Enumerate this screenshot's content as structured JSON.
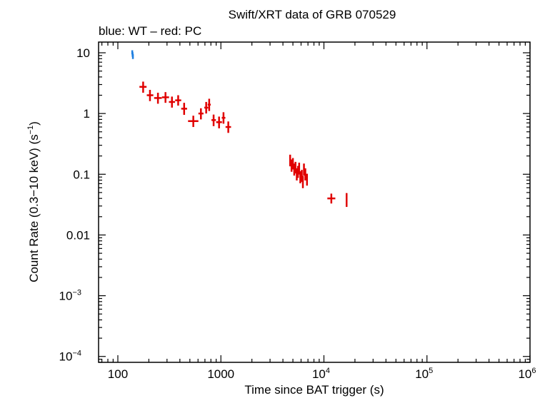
{
  "chart_data": {
    "type": "scatter",
    "title": "Swift/XRT data of GRB 070529",
    "subtitle": "blue: WT – red: PC",
    "xlabel": "Time since BAT trigger (s)",
    "ylabel_parts": {
      "main": "Count Rate (0.3−10 keV) (s",
      "sup": "−1",
      "close": ")"
    },
    "x_scale": "log",
    "y_scale": "log",
    "xlim": [
      65,
      1000000
    ],
    "ylim": [
      8e-05,
      15
    ],
    "grid": false,
    "x_ticks": [
      {
        "value": 100,
        "base": "100",
        "exp": ""
      },
      {
        "value": 1000,
        "base": "1000",
        "exp": ""
      },
      {
        "value": 10000,
        "base": "10",
        "exp": "4"
      },
      {
        "value": 100000,
        "base": "10",
        "exp": "5"
      },
      {
        "value": 1000000,
        "base": "10",
        "exp": "6"
      }
    ],
    "y_ticks": [
      {
        "value": 10,
        "base": "10",
        "exp": ""
      },
      {
        "value": 1,
        "base": "1",
        "exp": ""
      },
      {
        "value": 0.1,
        "base": "0.1",
        "exp": ""
      },
      {
        "value": 0.01,
        "base": "0.01",
        "exp": ""
      },
      {
        "value": 0.001,
        "base": "10",
        "exp": "−3"
      },
      {
        "value": 0.0001,
        "base": "10",
        "exp": "−4"
      }
    ],
    "series": [
      {
        "mode": "WT",
        "color": "#1e7fe0",
        "points": [
          {
            "x": 138,
            "xerr_lo": 2,
            "xerr_hi": 2,
            "y": 10.2,
            "yerr_lo": 0.8,
            "yerr_hi": 0.8
          },
          {
            "x": 139,
            "xerr_lo": 1.5,
            "xerr_hi": 1.5,
            "y": 9.4,
            "yerr_lo": 0.8,
            "yerr_hi": 0.8
          },
          {
            "x": 140,
            "xerr_lo": 1.5,
            "xerr_hi": 1.5,
            "y": 8.7,
            "yerr_lo": 0.8,
            "yerr_hi": 0.8
          }
        ]
      },
      {
        "mode": "PC",
        "color": "#e00000",
        "points": [
          {
            "x": 176,
            "xerr_lo": 14,
            "xerr_hi": 14,
            "y": 2.75,
            "yerr_lo": 0.55,
            "yerr_hi": 0.6
          },
          {
            "x": 205,
            "xerr_lo": 14,
            "xerr_hi": 16,
            "y": 2.0,
            "yerr_lo": 0.4,
            "yerr_hi": 0.45
          },
          {
            "x": 245,
            "xerr_lo": 20,
            "xerr_hi": 22,
            "y": 1.8,
            "yerr_lo": 0.35,
            "yerr_hi": 0.4
          },
          {
            "x": 290,
            "xerr_lo": 22,
            "xerr_hi": 24,
            "y": 1.85,
            "yerr_lo": 0.35,
            "yerr_hi": 0.4
          },
          {
            "x": 335,
            "xerr_lo": 22,
            "xerr_hi": 24,
            "y": 1.55,
            "yerr_lo": 0.3,
            "yerr_hi": 0.35
          },
          {
            "x": 385,
            "xerr_lo": 25,
            "xerr_hi": 27,
            "y": 1.65,
            "yerr_lo": 0.3,
            "yerr_hi": 0.35
          },
          {
            "x": 440,
            "xerr_lo": 28,
            "xerr_hi": 30,
            "y": 1.2,
            "yerr_lo": 0.25,
            "yerr_hi": 0.3
          },
          {
            "x": 540,
            "xerr_lo": 60,
            "xerr_hi": 65,
            "y": 0.75,
            "yerr_lo": 0.15,
            "yerr_hi": 0.17
          },
          {
            "x": 640,
            "xerr_lo": 35,
            "xerr_hi": 38,
            "y": 1.0,
            "yerr_lo": 0.2,
            "yerr_hi": 0.22
          },
          {
            "x": 720,
            "xerr_lo": 30,
            "xerr_hi": 32,
            "y": 1.25,
            "yerr_lo": 0.25,
            "yerr_hi": 0.3
          },
          {
            "x": 770,
            "xerr_lo": 25,
            "xerr_hi": 27,
            "y": 1.4,
            "yerr_lo": 0.3,
            "yerr_hi": 0.35
          },
          {
            "x": 850,
            "xerr_lo": 40,
            "xerr_hi": 45,
            "y": 0.78,
            "yerr_lo": 0.16,
            "yerr_hi": 0.18
          },
          {
            "x": 960,
            "xerr_lo": 60,
            "xerr_hi": 65,
            "y": 0.72,
            "yerr_lo": 0.15,
            "yerr_hi": 0.17
          },
          {
            "x": 1060,
            "xerr_lo": 40,
            "xerr_hi": 45,
            "y": 0.85,
            "yerr_lo": 0.17,
            "yerr_hi": 0.2
          },
          {
            "x": 1180,
            "xerr_lo": 70,
            "xerr_hi": 75,
            "y": 0.6,
            "yerr_lo": 0.12,
            "yerr_hi": 0.14
          },
          {
            "x": 4700,
            "xerr_lo": 60,
            "xerr_hi": 60,
            "y": 0.17,
            "yerr_lo": 0.035,
            "yerr_hi": 0.04
          },
          {
            "x": 4850,
            "xerr_lo": 60,
            "xerr_hi": 60,
            "y": 0.14,
            "yerr_lo": 0.03,
            "yerr_hi": 0.035
          },
          {
            "x": 5000,
            "xerr_lo": 60,
            "xerr_hi": 60,
            "y": 0.15,
            "yerr_lo": 0.03,
            "yerr_hi": 0.035
          },
          {
            "x": 5150,
            "xerr_lo": 60,
            "xerr_hi": 60,
            "y": 0.12,
            "yerr_lo": 0.025,
            "yerr_hi": 0.03
          },
          {
            "x": 5300,
            "xerr_lo": 60,
            "xerr_hi": 60,
            "y": 0.13,
            "yerr_lo": 0.027,
            "yerr_hi": 0.03
          },
          {
            "x": 5450,
            "xerr_lo": 60,
            "xerr_hi": 60,
            "y": 0.1,
            "yerr_lo": 0.021,
            "yerr_hi": 0.025
          },
          {
            "x": 5600,
            "xerr_lo": 60,
            "xerr_hi": 60,
            "y": 0.11,
            "yerr_lo": 0.023,
            "yerr_hi": 0.027
          },
          {
            "x": 5750,
            "xerr_lo": 60,
            "xerr_hi": 60,
            "y": 0.125,
            "yerr_lo": 0.026,
            "yerr_hi": 0.03
          },
          {
            "x": 5900,
            "xerr_lo": 60,
            "xerr_hi": 60,
            "y": 0.09,
            "yerr_lo": 0.019,
            "yerr_hi": 0.022
          },
          {
            "x": 6100,
            "xerr_lo": 70,
            "xerr_hi": 70,
            "y": 0.095,
            "yerr_lo": 0.02,
            "yerr_hi": 0.023
          },
          {
            "x": 6250,
            "xerr_lo": 70,
            "xerr_hi": 70,
            "y": 0.075,
            "yerr_lo": 0.016,
            "yerr_hi": 0.019
          },
          {
            "x": 6400,
            "xerr_lo": 70,
            "xerr_hi": 70,
            "y": 0.12,
            "yerr_lo": 0.025,
            "yerr_hi": 0.03
          },
          {
            "x": 6600,
            "xerr_lo": 80,
            "xerr_hi": 80,
            "y": 0.1,
            "yerr_lo": 0.021,
            "yerr_hi": 0.025
          },
          {
            "x": 6850,
            "xerr_lo": 90,
            "xerr_hi": 90,
            "y": 0.082,
            "yerr_lo": 0.017,
            "yerr_hi": 0.02
          },
          {
            "x": 11800,
            "xerr_lo": 1000,
            "xerr_hi": 1100,
            "y": 0.04,
            "yerr_lo": 0.007,
            "yerr_hi": 0.008
          },
          {
            "x": 16600,
            "xerr_lo": 180,
            "xerr_hi": 180,
            "y": 0.04,
            "yerr_lo": 0.011,
            "yerr_hi": 0.009
          }
        ]
      }
    ]
  }
}
